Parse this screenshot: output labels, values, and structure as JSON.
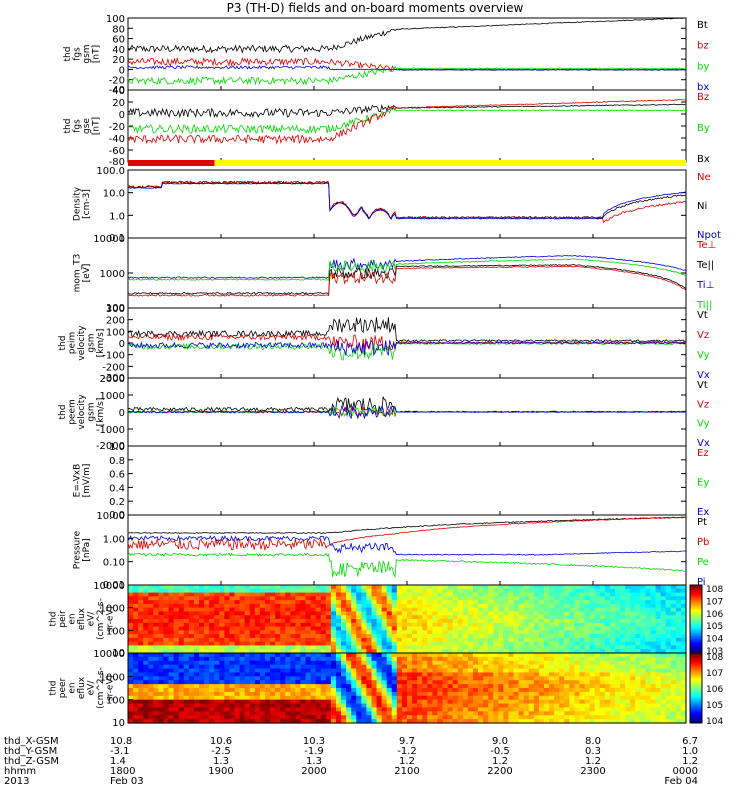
{
  "title": "P3 (TH-D) fields and on-board moments overview",
  "colors": {
    "black": "#000000",
    "red": "#e00000",
    "green": "#00dd00",
    "blue": "#0000dd",
    "yellow": "#ffff00"
  },
  "chart_data": [
    {
      "type": "line",
      "ylabel": [
        "thd",
        "fgs",
        "gsm",
        "[nT]"
      ],
      "yticks": [
        "100",
        "80",
        "60",
        "40",
        "20",
        "0",
        "-20",
        "-40"
      ],
      "ylim": [
        -40,
        100
      ],
      "legend": [
        {
          "name": "Bt",
          "color": "#000000"
        },
        {
          "name": "bz",
          "color": "#e00000"
        },
        {
          "name": "by",
          "color": "#00dd00"
        },
        {
          "name": "bx",
          "color": "#0000dd"
        }
      ]
    },
    {
      "type": "line",
      "ylabel": [
        "thd",
        "fgs",
        "gse",
        "[nT]"
      ],
      "yticks": [
        "40",
        "20",
        "0",
        "-20",
        "-40",
        "-60",
        "-80"
      ],
      "ylim": [
        -80,
        40
      ],
      "legend": [
        {
          "name": "Bz",
          "color": "#e00000"
        },
        {
          "name": "By",
          "color": "#00dd00"
        },
        {
          "name": "Bx",
          "color": "#000000"
        }
      ]
    },
    {
      "type": "line",
      "ylabel": [
        "Density",
        "[cm-3]"
      ],
      "yscale": "log",
      "yticks": [
        "100.0",
        "10.0",
        "1.0",
        "0.1"
      ],
      "legend": [
        {
          "name": "Ne",
          "color": "#e00000"
        },
        {
          "name": "Ni",
          "color": "#000000"
        },
        {
          "name": "Npot",
          "color": "#0000dd"
        }
      ]
    },
    {
      "type": "line",
      "ylabel": [
        "mom_T3",
        "[eV]"
      ],
      "yscale": "log",
      "yticks": [
        "10000",
        "1000",
        "100"
      ],
      "legend": [
        {
          "name": "Te⊥",
          "color": "#e00000"
        },
        {
          "name": "Te||",
          "color": "#000000"
        },
        {
          "name": "Ti⊥",
          "color": "#0000dd"
        },
        {
          "name": "Ti||",
          "color": "#00dd00"
        }
      ]
    },
    {
      "type": "line",
      "ylabel": [
        "thd",
        "peim",
        "velocity",
        "gsm",
        "[km/s]"
      ],
      "yticks": [
        "300",
        "200",
        "100",
        "0",
        "-100",
        "-200",
        "-300"
      ],
      "ylim": [
        -300,
        300
      ],
      "legend": [
        {
          "name": "Vt",
          "color": "#000000"
        },
        {
          "name": "Vz",
          "color": "#e00000"
        },
        {
          "name": "Vy",
          "color": "#00dd00"
        },
        {
          "name": "Vx",
          "color": "#0000dd"
        }
      ]
    },
    {
      "type": "line",
      "ylabel": [
        "thd",
        "peem",
        "velocity",
        "gsm",
        "[km/s]"
      ],
      "yticks": [
        "2000",
        "1000",
        "0",
        "-1000",
        "-2000"
      ],
      "ylim": [
        -2000,
        2000
      ],
      "legend": [
        {
          "name": "Vt",
          "color": "#000000"
        },
        {
          "name": "Vz",
          "color": "#e00000"
        },
        {
          "name": "Vy",
          "color": "#00dd00"
        },
        {
          "name": "Vx",
          "color": "#0000dd"
        }
      ]
    },
    {
      "type": "line",
      "ylabel": [
        "E=-VxB",
        "[mV/m]"
      ],
      "yticks": [
        "1.0",
        "0.8",
        "0.6",
        "0.4",
        "0.2",
        "0.0"
      ],
      "ylim": [
        0,
        1
      ],
      "legend": [
        {
          "name": "Ez",
          "color": "#e00000"
        },
        {
          "name": "Ey",
          "color": "#00dd00"
        },
        {
          "name": "Ex",
          "color": "#0000dd"
        }
      ]
    },
    {
      "type": "line",
      "ylabel": [
        "Pressure",
        "[nPa]"
      ],
      "yscale": "log",
      "yticks": [
        "10.00",
        "1.00",
        "0.10",
        "0.01"
      ],
      "legend": [
        {
          "name": "Pt",
          "color": "#000000"
        },
        {
          "name": "Pb",
          "color": "#e00000"
        },
        {
          "name": "Pe",
          "color": "#00dd00"
        },
        {
          "name": "Pi",
          "color": "#0000dd"
        }
      ]
    },
    {
      "type": "heatmap",
      "ylabel": [
        "thd",
        "peir",
        "en",
        "eflux",
        "eV/",
        "(cm^2-s-",
        "sr-eV)"
      ],
      "yscale": "log",
      "yticks": [
        "10000",
        "1000",
        "100",
        "10"
      ],
      "colorbar_ticks": [
        "10^8",
        "10^7",
        "10^6",
        "10^5",
        "10^4",
        "10^3"
      ]
    },
    {
      "type": "heatmap",
      "ylabel": [
        "thd",
        "peer",
        "en",
        "eflux",
        "eV/",
        "(cm^2-s-",
        "sr-eV)"
      ],
      "yscale": "log",
      "yticks": [
        "10000",
        "1000",
        "100",
        "10"
      ],
      "colorbar_ticks": [
        "10^8",
        "10^7",
        "10^6",
        "10^5",
        "10^4"
      ]
    }
  ],
  "xaxis": {
    "row_labels": [
      "thd_X-GSM",
      "thd_Y-GSM",
      "thd_Z-GSM",
      "hhmm",
      "2013"
    ],
    "columns": [
      {
        "vals": [
          "10.8",
          "-3.1",
          "1.4",
          "1800",
          "Feb 03"
        ]
      },
      {
        "vals": [
          "10.6",
          "-2.5",
          "1.3",
          "1900",
          ""
        ]
      },
      {
        "vals": [
          "10.3",
          "-1.9",
          "1.3",
          "2000",
          ""
        ]
      },
      {
        "vals": [
          "9.7",
          "-1.2",
          "1.2",
          "2100",
          ""
        ]
      },
      {
        "vals": [
          "9.0",
          "-0.5",
          "1.2",
          "2200",
          ""
        ]
      },
      {
        "vals": [
          "8.0",
          "0.3",
          "1.2",
          "2300",
          ""
        ]
      },
      {
        "vals": [
          "6.7",
          "1.0",
          "1.2",
          "0000",
          "Feb 04"
        ]
      }
    ]
  }
}
